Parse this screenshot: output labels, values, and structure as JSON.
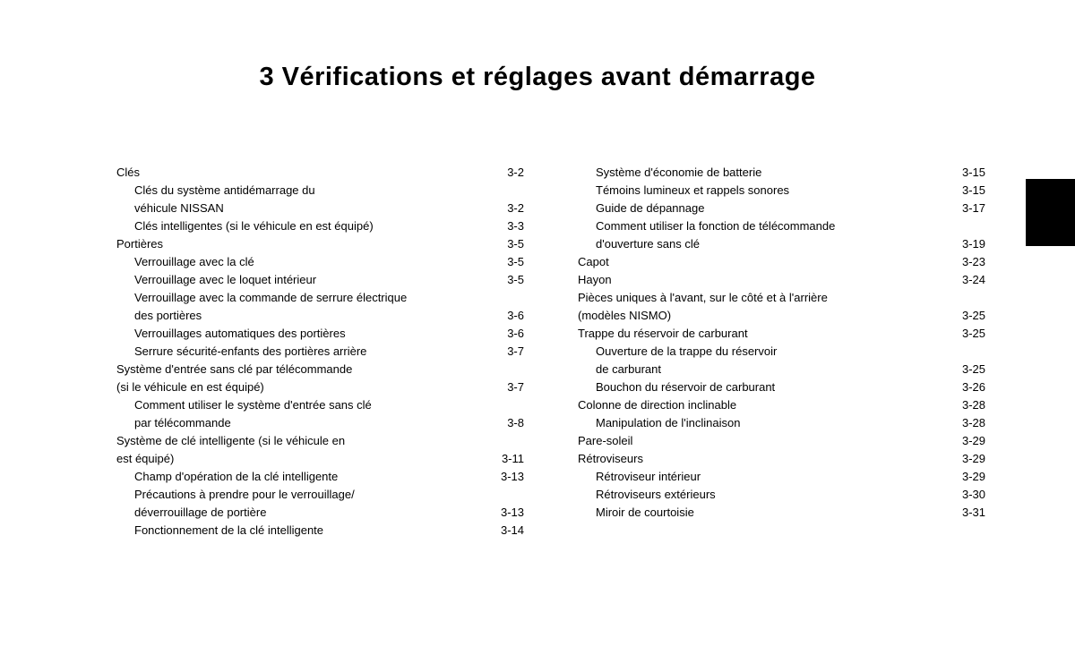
{
  "title": "3 Vérifications et réglages avant démarrage",
  "columns": {
    "left": [
      {
        "type": "row",
        "level": 1,
        "label": "Clés",
        "page": "3-2"
      },
      {
        "type": "cont",
        "level": 2,
        "text": "Clés du système antidémarrage du"
      },
      {
        "type": "row",
        "level": 2,
        "label": "véhicule NISSAN",
        "page": "3-2"
      },
      {
        "type": "row",
        "level": 2,
        "label": "Clés intelligentes (si le véhicule en est équipé)",
        "page": "3-3"
      },
      {
        "type": "row",
        "level": 1,
        "label": "Portières",
        "page": "3-5"
      },
      {
        "type": "row",
        "level": 2,
        "label": "Verrouillage avec la clé",
        "page": "3-5"
      },
      {
        "type": "row",
        "level": 2,
        "label": "Verrouillage avec le loquet intérieur",
        "page": "3-5"
      },
      {
        "type": "cont",
        "level": 2,
        "text": "Verrouillage avec la commande de serrure électrique"
      },
      {
        "type": "row",
        "level": 2,
        "label": "des portières",
        "page": "3-6"
      },
      {
        "type": "row",
        "level": 2,
        "label": "Verrouillages automatiques des portières",
        "page": "3-6"
      },
      {
        "type": "row",
        "level": 2,
        "label": "Serrure sécurité-enfants des portières arrière",
        "page": "3-7"
      },
      {
        "type": "cont",
        "level": 1,
        "text": "Système d'entrée sans clé par télécommande"
      },
      {
        "type": "row",
        "level": 1,
        "label": "(si le véhicule en est équipé)",
        "page": "3-7"
      },
      {
        "type": "cont",
        "level": 2,
        "text": "Comment utiliser le système d'entrée sans clé"
      },
      {
        "type": "row",
        "level": 2,
        "label": "par télécommande",
        "page": "3-8"
      },
      {
        "type": "cont",
        "level": 1,
        "text": "Système de clé intelligente (si le véhicule en"
      },
      {
        "type": "row",
        "level": 1,
        "label": "est équipé)",
        "page": "3-11"
      },
      {
        "type": "row",
        "level": 2,
        "label": "Champ d'opération de la clé intelligente",
        "page": "3-13"
      },
      {
        "type": "cont",
        "level": 2,
        "text": "Précautions à prendre pour le verrouillage/"
      },
      {
        "type": "row",
        "level": 2,
        "label": "déverrouillage de portière",
        "page": "3-13"
      },
      {
        "type": "row",
        "level": 2,
        "label": "Fonctionnement de la clé intelligente",
        "page": "3-14"
      }
    ],
    "right": [
      {
        "type": "row",
        "level": 2,
        "label": "Système d'économie de batterie",
        "page": "3-15"
      },
      {
        "type": "row",
        "level": 2,
        "label": "Témoins lumineux et rappels sonores",
        "page": "3-15"
      },
      {
        "type": "row",
        "level": 2,
        "label": "Guide de dépannage",
        "page": "3-17"
      },
      {
        "type": "cont",
        "level": 2,
        "text": "Comment utiliser la fonction de télécommande"
      },
      {
        "type": "row",
        "level": 2,
        "label": "d'ouverture sans clé",
        "page": "3-19"
      },
      {
        "type": "row",
        "level": 1,
        "label": "Capot",
        "page": "3-23"
      },
      {
        "type": "row",
        "level": 1,
        "label": "Hayon",
        "page": "3-24"
      },
      {
        "type": "cont",
        "level": 1,
        "text": "Pièces uniques à l'avant, sur le côté et à l'arrière"
      },
      {
        "type": "row",
        "level": 1,
        "label": "(modèles NISMO)",
        "page": "3-25"
      },
      {
        "type": "row",
        "level": 1,
        "label": "Trappe du réservoir de carburant",
        "page": "3-25"
      },
      {
        "type": "cont",
        "level": 2,
        "text": "Ouverture de la trappe du réservoir"
      },
      {
        "type": "row",
        "level": 2,
        "label": "de carburant",
        "page": "3-25"
      },
      {
        "type": "row",
        "level": 2,
        "label": "Bouchon du réservoir de carburant",
        "page": "3-26"
      },
      {
        "type": "row",
        "level": 1,
        "label": "Colonne de direction inclinable",
        "page": "3-28"
      },
      {
        "type": "row",
        "level": 2,
        "label": "Manipulation de l'inclinaison",
        "page": "3-28"
      },
      {
        "type": "row",
        "level": 1,
        "label": "Pare-soleil",
        "page": "3-29"
      },
      {
        "type": "row",
        "level": 1,
        "label": "Rétroviseurs",
        "page": "3-29"
      },
      {
        "type": "row",
        "level": 2,
        "label": "Rétroviseur intérieur",
        "page": "3-29"
      },
      {
        "type": "row",
        "level": 2,
        "label": "Rétroviseurs extérieurs",
        "page": "3-30"
      },
      {
        "type": "row",
        "level": 2,
        "label": "Miroir de courtoisie",
        "page": "3-31"
      }
    ]
  },
  "colors": {
    "background": "#ffffff",
    "text": "#000000",
    "tab": "#000000"
  }
}
